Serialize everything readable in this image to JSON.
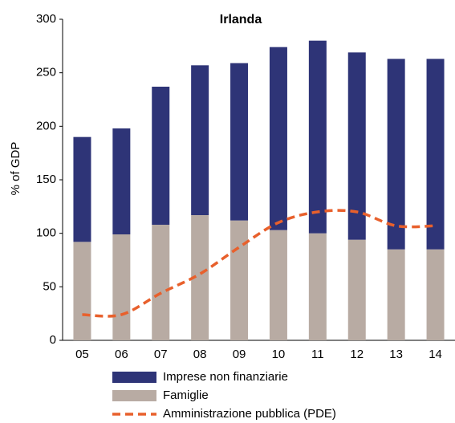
{
  "chart_data": {
    "type": "bar",
    "title": "Irlanda",
    "y_label": "% of GDP",
    "categories": [
      "05",
      "06",
      "07",
      "08",
      "09",
      "10",
      "11",
      "12",
      "13",
      "14"
    ],
    "series": [
      {
        "name": "Imprese non finanziarie",
        "type": "bar",
        "color": "#2e3477",
        "values": [
          98,
          99,
          129,
          140,
          147,
          171,
          180,
          175,
          178,
          178
        ]
      },
      {
        "name": "Famiglie",
        "type": "bar",
        "color": "#b8aba3",
        "values": [
          92,
          99,
          108,
          117,
          112,
          103,
          100,
          94,
          85,
          85
        ]
      },
      {
        "name": "Amministrazione pubblica (PDE)",
        "type": "line",
        "color": "#e8602c",
        "values": [
          24,
          24,
          44,
          62,
          87,
          110,
          120,
          120,
          107,
          107
        ]
      }
    ],
    "ylim": [
      0,
      300
    ],
    "yticks": [
      0,
      50,
      100,
      150,
      200,
      250,
      300
    ]
  }
}
